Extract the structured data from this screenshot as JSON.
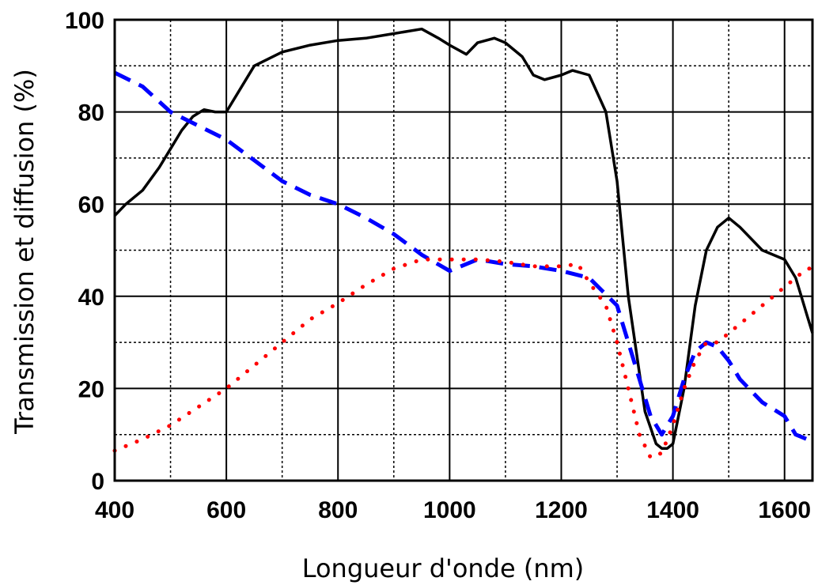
{
  "chart_data": {
    "type": "line",
    "title": "",
    "xlabel": "Longueur d'onde (nm)",
    "ylabel": "Transmission et diffusion (%)",
    "xlim": [
      400,
      1650
    ],
    "ylim": [
      0,
      100
    ],
    "x_ticks": [
      400,
      600,
      800,
      1000,
      1200,
      1400,
      1600
    ],
    "x_tick_labels": [
      "400",
      "600",
      "800",
      "1000",
      "1200",
      "1400",
      "1600"
    ],
    "y_ticks": [
      0,
      20,
      40,
      60,
      80,
      100
    ],
    "y_tick_labels": [
      "0",
      "20",
      "40",
      "60",
      "80",
      "100"
    ],
    "grid": true,
    "legend": "none",
    "series": [
      {
        "style": "solid",
        "color": "#000000",
        "x": [
          400,
          420,
          450,
          480,
          500,
          520,
          540,
          560,
          580,
          600,
          650,
          700,
          750,
          800,
          850,
          900,
          950,
          980,
          1000,
          1030,
          1050,
          1080,
          1100,
          1130,
          1150,
          1170,
          1200,
          1220,
          1250,
          1280,
          1300,
          1320,
          1350,
          1370,
          1380,
          1390,
          1400,
          1420,
          1440,
          1460,
          1480,
          1500,
          1520,
          1560,
          1600,
          1620,
          1630,
          1640,
          1650
        ],
        "y": [
          57.5,
          60,
          63,
          68,
          72,
          76,
          79,
          80.5,
          80,
          80,
          90,
          93,
          94.5,
          95.5,
          96,
          97,
          98,
          96,
          94.5,
          92.5,
          95,
          96,
          95,
          92,
          88,
          87,
          88,
          89,
          88,
          80,
          65,
          40,
          15,
          8,
          7,
          7,
          8,
          20,
          38,
          50,
          55,
          57,
          55,
          50,
          48,
          44,
          40,
          36,
          32
        ]
      },
      {
        "style": "dashed",
        "color": "#0000ff",
        "x": [
          400,
          450,
          500,
          550,
          600,
          650,
          700,
          750,
          800,
          850,
          900,
          950,
          1000,
          1050,
          1100,
          1150,
          1200,
          1250,
          1300,
          1320,
          1340,
          1360,
          1380,
          1400,
          1420,
          1440,
          1460,
          1480,
          1500,
          1520,
          1560,
          1600,
          1620,
          1640,
          1650
        ],
        "y": [
          88.5,
          85.5,
          80,
          77,
          74,
          69.5,
          65,
          62,
          60,
          57,
          53.5,
          49,
          45.5,
          48,
          47,
          46.5,
          45.5,
          44,
          38,
          30,
          22,
          14,
          10,
          14,
          22,
          28,
          30,
          29,
          26,
          22,
          17,
          14,
          10,
          9,
          8
        ]
      },
      {
        "style": "dotted",
        "color": "#ff0000",
        "x": [
          400,
          450,
          500,
          550,
          600,
          650,
          700,
          750,
          800,
          850,
          900,
          950,
          1000,
          1050,
          1100,
          1150,
          1200,
          1230,
          1250,
          1280,
          1300,
          1320,
          1340,
          1360,
          1380,
          1400,
          1420,
          1440,
          1460,
          1480,
          1500,
          1520,
          1560,
          1600,
          1620,
          1640,
          1650
        ],
        "y": [
          6.5,
          9,
          12,
          16,
          20,
          25,
          30,
          35,
          38.5,
          42.5,
          46,
          48,
          48,
          48,
          47.5,
          46.5,
          46.5,
          47,
          43,
          38,
          30,
          20,
          10,
          5,
          6,
          12,
          20,
          26,
          30,
          30,
          32,
          34,
          38,
          42,
          44,
          46,
          46
        ]
      }
    ]
  }
}
